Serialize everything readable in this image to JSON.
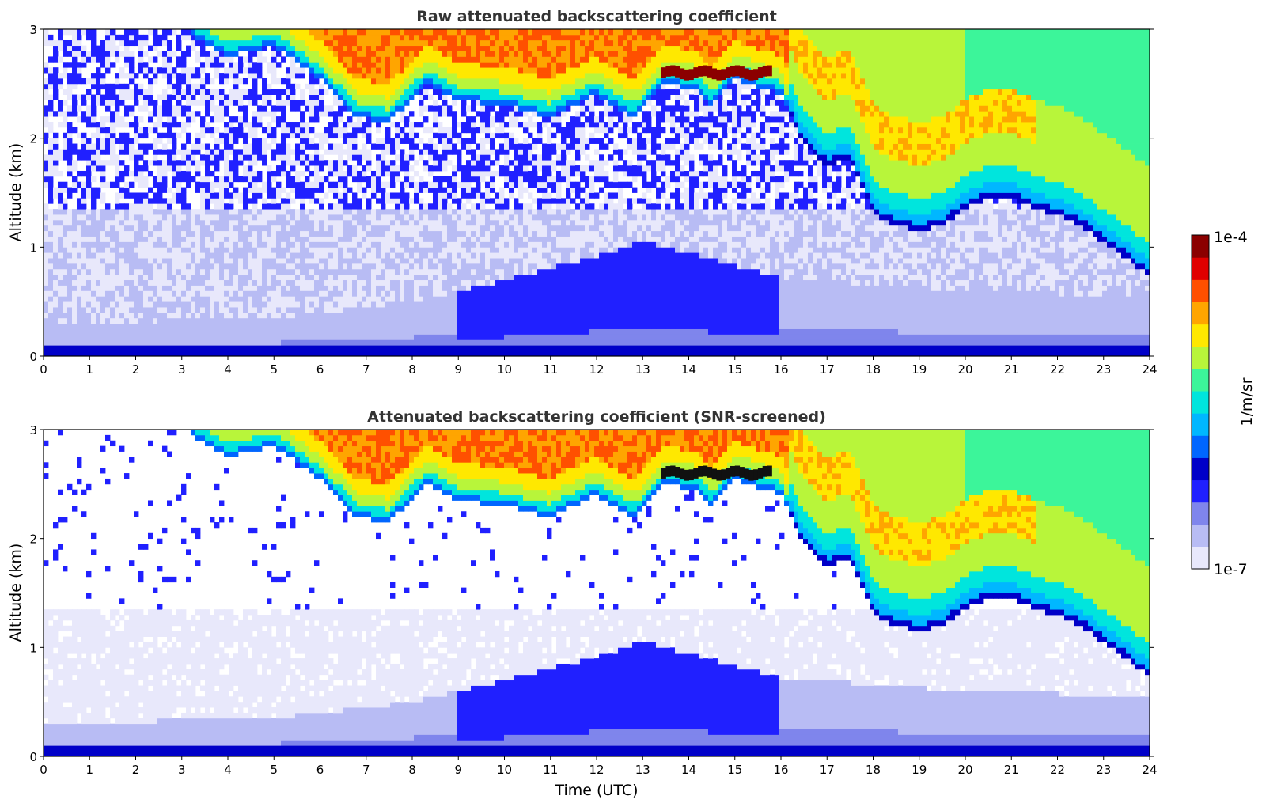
{
  "chart_data": [
    {
      "type": "heatmap",
      "title": "Raw attenuated backscattering coefficient",
      "xlabel": "",
      "ylabel": "Altitude (km)",
      "xlim": [
        0,
        24
      ],
      "ylim": [
        0,
        3
      ],
      "xticks": [
        "0",
        "1",
        "2",
        "3",
        "4",
        "5",
        "6",
        "7",
        "8",
        "9",
        "10",
        "11",
        "12",
        "13",
        "14",
        "15",
        "16",
        "17",
        "18",
        "19",
        "20",
        "21",
        "22",
        "23",
        "24"
      ],
      "yticks": [
        "0",
        "1",
        "2",
        "3"
      ],
      "screened": false,
      "cloud_base_km": [
        [
          3.2,
          2.95
        ],
        [
          4.0,
          2.75
        ],
        [
          5.0,
          2.85
        ],
        [
          6.0,
          2.55
        ],
        [
          6.8,
          2.2
        ],
        [
          7.5,
          2.15
        ],
        [
          8.3,
          2.5
        ],
        [
          9.0,
          2.35
        ],
        [
          10.0,
          2.3
        ],
        [
          11.0,
          2.2
        ],
        [
          12.0,
          2.4
        ],
        [
          12.8,
          2.2
        ],
        [
          13.5,
          2.5
        ],
        [
          14.2,
          2.45
        ],
        [
          14.5,
          2.3
        ],
        [
          15.0,
          2.55
        ],
        [
          16.0,
          2.4
        ],
        [
          16.5,
          1.95
        ],
        [
          17.0,
          1.75
        ],
        [
          17.5,
          1.8
        ],
        [
          18.0,
          1.3
        ],
        [
          18.5,
          1.2
        ],
        [
          19.0,
          1.15
        ],
        [
          19.5,
          1.2
        ],
        [
          20.0,
          1.35
        ],
        [
          20.5,
          1.45
        ],
        [
          21.0,
          1.45
        ],
        [
          21.5,
          1.35
        ],
        [
          22.0,
          1.3
        ],
        [
          22.5,
          1.2
        ],
        [
          23.0,
          1.05
        ],
        [
          23.5,
          0.9
        ],
        [
          24.0,
          0.72
        ]
      ],
      "thin_layer": {
        "x_start": 13.4,
        "x_end": 15.8,
        "altitude_km": 2.6
      },
      "boundary_layer_top_km": [
        [
          0,
          0.3
        ],
        [
          5,
          0.35
        ],
        [
          8,
          0.5
        ],
        [
          10,
          0.7
        ],
        [
          12,
          0.92
        ],
        [
          13,
          1.05
        ],
        [
          14,
          0.95
        ],
        [
          16,
          0.72
        ],
        [
          20,
          0.6
        ],
        [
          24,
          0.55
        ]
      ]
    },
    {
      "type": "heatmap",
      "title": "Attenuated backscattering coefficient (SNR-screened)",
      "xlabel": "Time (UTC)",
      "ylabel": "Altitude (km)",
      "xlim": [
        0,
        24
      ],
      "ylim": [
        0,
        3
      ],
      "xticks": [
        "0",
        "1",
        "2",
        "3",
        "4",
        "5",
        "6",
        "7",
        "8",
        "9",
        "10",
        "11",
        "12",
        "13",
        "14",
        "15",
        "16",
        "17",
        "18",
        "19",
        "20",
        "21",
        "22",
        "23",
        "24"
      ],
      "yticks": [
        "0",
        "1",
        "2",
        "3"
      ],
      "screened": true,
      "cloud_base_km": [
        [
          3.2,
          2.95
        ],
        [
          4.0,
          2.75
        ],
        [
          5.0,
          2.85
        ],
        [
          6.0,
          2.55
        ],
        [
          6.8,
          2.2
        ],
        [
          7.5,
          2.15
        ],
        [
          8.3,
          2.5
        ],
        [
          9.0,
          2.35
        ],
        [
          10.0,
          2.3
        ],
        [
          11.0,
          2.2
        ],
        [
          12.0,
          2.4
        ],
        [
          12.8,
          2.2
        ],
        [
          13.5,
          2.5
        ],
        [
          14.2,
          2.45
        ],
        [
          14.5,
          2.3
        ],
        [
          15.0,
          2.55
        ],
        [
          16.0,
          2.4
        ],
        [
          16.5,
          1.95
        ],
        [
          17.0,
          1.75
        ],
        [
          17.5,
          1.8
        ],
        [
          18.0,
          1.3
        ],
        [
          18.5,
          1.2
        ],
        [
          19.0,
          1.15
        ],
        [
          19.5,
          1.2
        ],
        [
          20.0,
          1.35
        ],
        [
          20.5,
          1.45
        ],
        [
          21.0,
          1.45
        ],
        [
          21.5,
          1.35
        ],
        [
          22.0,
          1.3
        ],
        [
          22.5,
          1.2
        ],
        [
          23.0,
          1.05
        ],
        [
          23.5,
          0.9
        ],
        [
          24.0,
          0.72
        ]
      ],
      "thin_layer": {
        "x_start": 13.4,
        "x_end": 15.8,
        "altitude_km": 2.6
      },
      "boundary_layer_top_km": [
        [
          0,
          0.3
        ],
        [
          5,
          0.35
        ],
        [
          8,
          0.5
        ],
        [
          10,
          0.7
        ],
        [
          12,
          0.92
        ],
        [
          13,
          1.05
        ],
        [
          14,
          0.95
        ],
        [
          16,
          0.72
        ],
        [
          20,
          0.6
        ],
        [
          24,
          0.55
        ]
      ]
    }
  ],
  "colorbar": {
    "label": "1/m/sr",
    "max_label": "1e-4",
    "min_label": "1e-7",
    "colors": [
      "#e8e8fb",
      "#b8bcf4",
      "#7f85ec",
      "#2020ff",
      "#0000c8",
      "#0066ff",
      "#00b7ff",
      "#00e5dd",
      "#3cf59a",
      "#b8f53a",
      "#ffe800",
      "#ffa500",
      "#ff5000",
      "#e00000",
      "#8b0000"
    ]
  }
}
